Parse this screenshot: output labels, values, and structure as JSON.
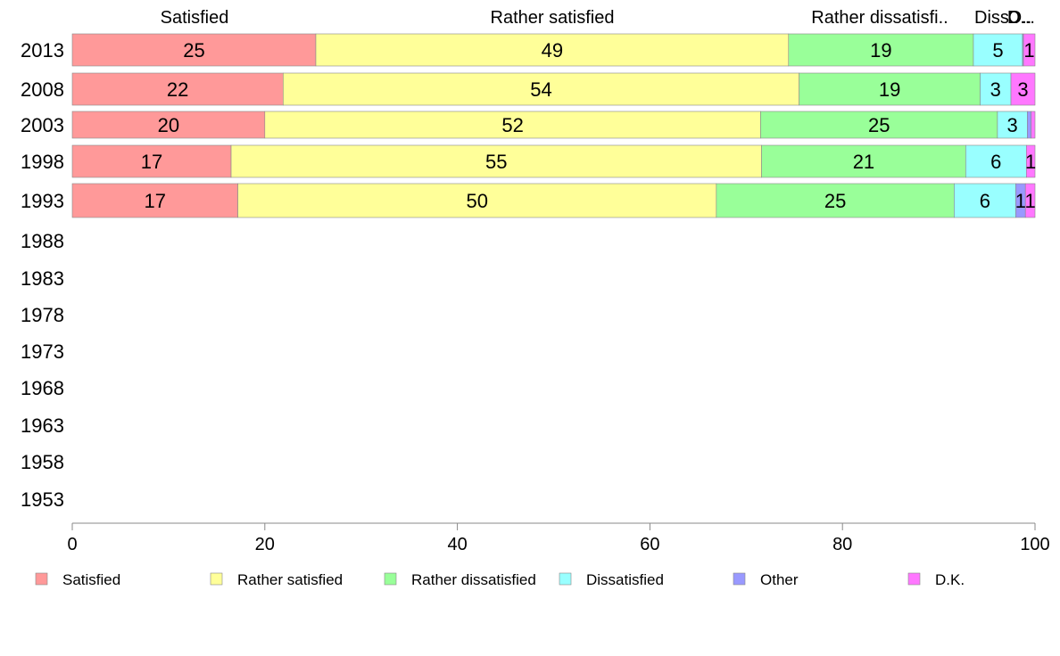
{
  "chart_data": {
    "type": "bar",
    "orientation": "horizontal",
    "stacked": "percent",
    "title": "",
    "xlabel": "",
    "ylabel": "",
    "xlim": [
      0,
      100
    ],
    "xticks": [
      0,
      20,
      40,
      60,
      80,
      100
    ],
    "grid": false,
    "legend_position": "bottom",
    "categories": [
      "2013",
      "2008",
      "2003",
      "1998",
      "1993",
      "1988",
      "1983",
      "1978",
      "1973",
      "1968",
      "1963",
      "1958",
      "1953"
    ],
    "column_headers": [
      "Satisfied",
      "Rather satisfied",
      "Rather dissatisfi..",
      "Diss..",
      "O..",
      "D..."
    ],
    "series": [
      {
        "name": "Satisfied",
        "color": "#ff9999",
        "values": [
          25.3,
          21.9,
          20.0,
          16.5,
          17.2,
          null,
          null,
          null,
          null,
          null,
          null,
          null,
          null
        ]
      },
      {
        "name": "Rather satisfied",
        "color": "#ffff99",
        "values": [
          49.1,
          53.6,
          51.5,
          55.1,
          49.7,
          null,
          null,
          null,
          null,
          null,
          null,
          null,
          null
        ]
      },
      {
        "name": "Rather dissatisfied",
        "color": "#99ff99",
        "values": [
          19.2,
          18.8,
          24.6,
          21.2,
          24.7,
          null,
          null,
          null,
          null,
          null,
          null,
          null,
          null
        ]
      },
      {
        "name": "Dissatisfied",
        "color": "#99ffff",
        "values": [
          5.1,
          3.2,
          3.1,
          6.3,
          6.4,
          null,
          null,
          null,
          null,
          null,
          null,
          null,
          null
        ]
      },
      {
        "name": "Other",
        "color": "#9999ff",
        "values": [
          0.1,
          0.0,
          0.4,
          0.0,
          1.0,
          null,
          null,
          null,
          null,
          null,
          null,
          null,
          null
        ]
      },
      {
        "name": "D.K.",
        "color": "#ff77ff",
        "values": [
          1.2,
          2.5,
          0.4,
          0.9,
          1.0,
          null,
          null,
          null,
          null,
          null,
          null,
          null,
          null
        ]
      }
    ]
  }
}
